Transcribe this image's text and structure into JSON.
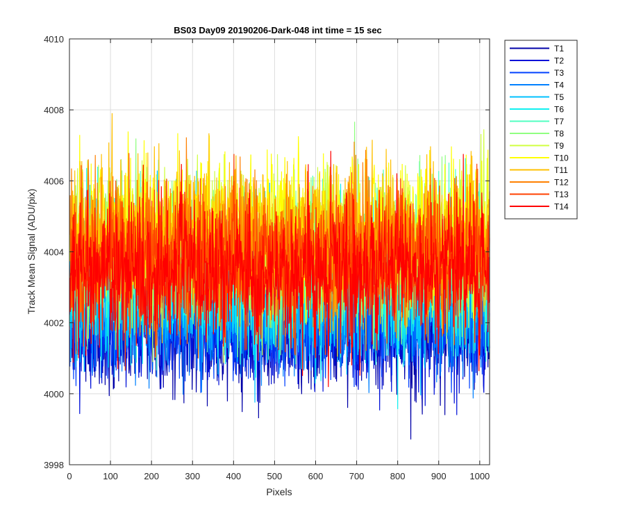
{
  "chart_data": {
    "type": "line",
    "title": "BS03 Day09 20190206-Dark-048 int time = 15 sec",
    "xlabel": "Pixels",
    "ylabel": "Track Mean Signal (ADU/pix)",
    "xlim": [
      0,
      1024
    ],
    "ylim": [
      3998,
      4010
    ],
    "x_ticks": [
      0,
      100,
      200,
      300,
      400,
      500,
      600,
      700,
      800,
      900,
      1000
    ],
    "y_ticks": [
      3998,
      4000,
      4002,
      4004,
      4006,
      4008,
      4010
    ],
    "grid": true,
    "legend_position": "outside-top-right",
    "n_points_per_series": 1024,
    "series": [
      {
        "name": "T1",
        "color": "#0000a8",
        "mean": 4001.8,
        "spread": 0.8
      },
      {
        "name": "T2",
        "color": "#0010d8",
        "mean": 4001.9,
        "spread": 0.8
      },
      {
        "name": "T3",
        "color": "#0040ff",
        "mean": 4002.1,
        "spread": 0.8
      },
      {
        "name": "T4",
        "color": "#0080ff",
        "mean": 4002.5,
        "spread": 0.9
      },
      {
        "name": "T5",
        "color": "#00c0ff",
        "mean": 4002.8,
        "spread": 0.9
      },
      {
        "name": "T6",
        "color": "#10f0f0",
        "mean": 4003.2,
        "spread": 1.0
      },
      {
        "name": "T7",
        "color": "#50ffc0",
        "mean": 4003.6,
        "spread": 1.0
      },
      {
        "name": "T8",
        "color": "#90ff80",
        "mean": 4004.0,
        "spread": 1.0
      },
      {
        "name": "T9",
        "color": "#d0ff40",
        "mean": 4004.3,
        "spread": 1.0
      },
      {
        "name": "T10",
        "color": "#ffff00",
        "mean": 4004.6,
        "spread": 1.0
      },
      {
        "name": "T11",
        "color": "#ffc000",
        "mean": 4004.4,
        "spread": 1.0
      },
      {
        "name": "T12",
        "color": "#ff8000",
        "mean": 4004.0,
        "spread": 1.0
      },
      {
        "name": "T13",
        "color": "#ff4000",
        "mean": 4003.7,
        "spread": 1.0
      },
      {
        "name": "T14",
        "color": "#ff0000",
        "mean": 4003.4,
        "spread": 1.0
      }
    ],
    "colors": {
      "axes_line": "#262626",
      "grid_line": "#dcdcdc",
      "background": "#ffffff"
    }
  }
}
